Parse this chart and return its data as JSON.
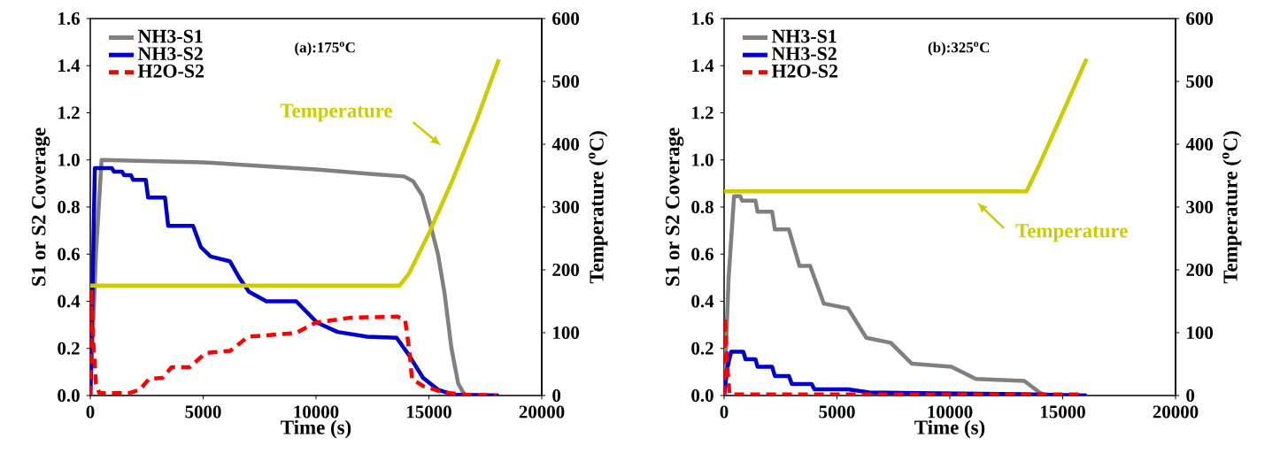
{
  "chart_data": [
    {
      "type": "line",
      "title": "(a):175$^{o}$C",
      "xlabel": "Time (s)",
      "ylabel": "S1 or S2 Coverage",
      "y2label": "Temperature ($^{o}$C)",
      "legend": "top left",
      "xlim": [
        0,
        20000
      ],
      "ylim": [
        0,
        1.6
      ],
      "y2lim": [
        0,
        600
      ],
      "xticks": [
        0,
        5000,
        10000,
        15000,
        20000
      ],
      "yticks": [
        {
          "value": 0,
          "label": "0.0"
        },
        {
          "value": 0.2,
          "label": "0.2"
        },
        {
          "value": 0.4,
          "label": "0.4"
        },
        {
          "value": 0.6,
          "label": "0.6"
        },
        {
          "value": 0.8,
          "label": "0.8"
        },
        {
          "value": 1.0,
          "label": "1.0"
        },
        {
          "value": 1.2,
          "label": "1.2"
        },
        {
          "value": 1.4,
          "label": "1.4"
        },
        {
          "value": 1.6,
          "label": "1.6"
        }
      ],
      "y2ticks": [
        0,
        100,
        200,
        300,
        400,
        500,
        600
      ],
      "series": [
        {
          "name": "NH3-S1",
          "color": "#808080",
          "line_style": "solid",
          "x": [
            0,
            250,
            500,
            2500,
            5000,
            7500,
            10000,
            12500,
            13900,
            14300,
            14700,
            15000,
            15400,
            15700,
            16000,
            16300,
            16600,
            18000
          ],
          "values": [
            0,
            0.6,
            1.0,
            0.995,
            0.99,
            0.975,
            0.96,
            0.94,
            0.93,
            0.91,
            0.85,
            0.75,
            0.6,
            0.43,
            0.2,
            0.05,
            0,
            0
          ]
        },
        {
          "name": "NH3-S2",
          "color": "#0000cc",
          "line_style": "solid",
          "x": [
            0,
            100,
            200,
            950,
            1050,
            1410,
            1500,
            1800,
            1900,
            2460,
            2560,
            3310,
            3450,
            4550,
            4900,
            5330,
            6180,
            6600,
            7030,
            7800,
            9120,
            10040,
            10950,
            12260,
            13570,
            14090,
            14740,
            15400,
            16050,
            18100
          ],
          "values": [
            0,
            0.45,
            0.965,
            0.965,
            0.95,
            0.95,
            0.935,
            0.935,
            0.915,
            0.915,
            0.84,
            0.84,
            0.72,
            0.72,
            0.63,
            0.59,
            0.57,
            0.5,
            0.44,
            0.4,
            0.4,
            0.31,
            0.27,
            0.25,
            0.245,
            0.175,
            0.075,
            0.025,
            0.004,
            0
          ]
        },
        {
          "name": "H2O-S2",
          "color": "#ff0000",
          "line_style": "dashed",
          "x": [
            0,
            40,
            120,
            250,
            400,
            1700,
            2200,
            2600,
            3200,
            3600,
            4400,
            5100,
            6200,
            7000,
            9100,
            10000,
            11500,
            13600,
            13950,
            14150,
            14250,
            14750,
            15650,
            16700,
            18000
          ],
          "values": [
            0,
            0.45,
            0.25,
            0.05,
            0.01,
            0.01,
            0.025,
            0.07,
            0.075,
            0.12,
            0.12,
            0.18,
            0.19,
            0.25,
            0.265,
            0.31,
            0.33,
            0.335,
            0.32,
            0.175,
            0.07,
            0.04,
            0.013,
            0.003,
            0
          ]
        },
        {
          "name": "Temperature",
          "color": "#cccc00",
          "line_style": "solid",
          "axis": "y2",
          "x": [
            0,
            13700,
            14100,
            15000,
            16050,
            17100,
            18100
          ],
          "values": [
            175,
            175,
            193,
            258,
            343,
            437,
            535
          ]
        }
      ]
    },
    {
      "type": "line",
      "title": "(b):325$^{o}$C",
      "xlabel": "Time (s)",
      "ylabel": "S1 or S2 Coverage",
      "y2label": "Temperature ($^{o}$C)",
      "legend": "top left",
      "xlim": [
        0,
        20000
      ],
      "ylim": [
        0,
        1.6
      ],
      "y2lim": [
        0,
        600
      ],
      "xticks": [
        0,
        5000,
        10000,
        15000,
        20000
      ],
      "yticks": [
        {
          "value": 0,
          "label": "0.0"
        },
        {
          "value": 0.2,
          "label": "0.2"
        },
        {
          "value": 0.4,
          "label": "0.4"
        },
        {
          "value": 0.6,
          "label": "0.6"
        },
        {
          "value": 0.8,
          "label": "0.8"
        },
        {
          "value": 1.0,
          "label": "1.0"
        },
        {
          "value": 1.2,
          "label": "1.2"
        },
        {
          "value": 1.4,
          "label": "1.4"
        },
        {
          "value": 1.6,
          "label": "1.6"
        }
      ],
      "y2ticks": [
        0,
        100,
        200,
        300,
        400,
        500,
        600
      ],
      "series": [
        {
          "name": "NH3-S1",
          "color": "#808080",
          "line_style": "solid",
          "x": [
            0,
            200,
            440,
            713,
            800,
            1390,
            1480,
            2127,
            2250,
            2870,
            3340,
            3810,
            4420,
            5490,
            6300,
            7380,
            8320,
            10070,
            11150,
            13300,
            13970,
            14240,
            16060
          ],
          "values": [
            0,
            0.5,
            0.846,
            0.846,
            0.827,
            0.827,
            0.78,
            0.78,
            0.705,
            0.705,
            0.55,
            0.55,
            0.39,
            0.37,
            0.245,
            0.224,
            0.135,
            0.122,
            0.07,
            0.062,
            0.013,
            0,
            0
          ]
        },
        {
          "name": "NH3-S2",
          "color": "#0000cc",
          "line_style": "solid",
          "x": [
            0,
            150,
            310,
            850,
            950,
            1390,
            1480,
            2127,
            2250,
            2870,
            3000,
            3880,
            4000,
            5490,
            6430,
            13160,
            16060
          ],
          "values": [
            0,
            0.12,
            0.186,
            0.186,
            0.154,
            0.154,
            0.122,
            0.122,
            0.083,
            0.083,
            0.049,
            0.049,
            0.026,
            0.026,
            0.013,
            0.006,
            0
          ]
        },
        {
          "name": "H2O-S2",
          "color": "#ff0000",
          "line_style": "dashed",
          "x": [
            0,
            40,
            120,
            240,
            15700
          ],
          "values": [
            0,
            0.33,
            0.15,
            0.005,
            0.005
          ]
        },
        {
          "name": "Temperature",
          "color": "#cccc00",
          "line_style": "solid",
          "axis": "y2",
          "x": [
            0,
            13400,
            14000,
            15000,
            16060
          ],
          "values": [
            325,
            325,
            370,
            450,
            536
          ]
        }
      ]
    }
  ]
}
